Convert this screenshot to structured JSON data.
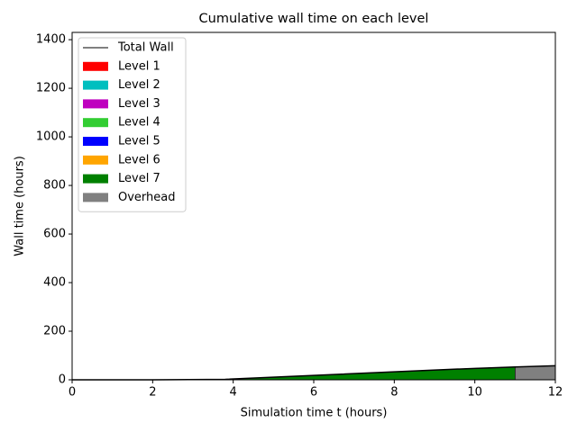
{
  "chart_data": {
    "type": "stacked-area",
    "title": "Cumulative wall time on each level",
    "x_label": "Simulation time t (hours)",
    "y_label": "Wall time (hours)",
    "x": [
      0,
      2,
      3.8,
      6,
      8,
      10,
      11,
      11,
      12
    ],
    "series": [
      {
        "name": "Total Wall",
        "color": "#000000",
        "type": "line",
        "values": [
          0,
          0,
          2,
          18,
          33,
          47,
          53,
          53,
          58
        ]
      },
      {
        "name": "Level 1",
        "color": "#ff0000",
        "values": [
          0,
          0,
          0,
          0,
          0,
          0,
          0,
          0,
          0
        ]
      },
      {
        "name": "Level 2",
        "color": "#00bfbf",
        "values": [
          0,
          0,
          0,
          0,
          0,
          0,
          0,
          0,
          0
        ]
      },
      {
        "name": "Level 3",
        "color": "#bf00bf",
        "values": [
          0,
          0,
          0,
          0,
          0,
          0,
          0,
          0,
          0
        ]
      },
      {
        "name": "Level 4",
        "color": "#32cd32",
        "values": [
          0,
          0,
          0,
          0,
          0,
          0,
          0,
          0,
          0
        ]
      },
      {
        "name": "Level 5",
        "color": "#0000ff",
        "values": [
          0,
          0,
          0,
          0,
          0,
          0,
          0,
          0,
          0
        ]
      },
      {
        "name": "Level 6",
        "color": "#ffa500",
        "values": [
          0,
          0,
          0,
          0,
          0,
          0,
          0,
          0,
          0
        ]
      },
      {
        "name": "Level 7",
        "color": "#008000",
        "values": [
          0,
          0,
          2,
          18,
          33,
          47,
          53,
          0,
          0
        ]
      },
      {
        "name": "Overhead",
        "color": "#808080",
        "values": [
          0,
          0,
          0,
          0,
          0,
          0,
          0,
          53,
          58
        ]
      }
    ],
    "xlim": [
      0,
      12
    ],
    "xticks": [
      0,
      2,
      4,
      6,
      8,
      10,
      12
    ],
    "ylim": [
      0,
      1430
    ],
    "yticks": [
      0,
      200,
      400,
      600,
      800,
      1000,
      1200,
      1400
    ],
    "legend": "upper left",
    "grid": false
  }
}
